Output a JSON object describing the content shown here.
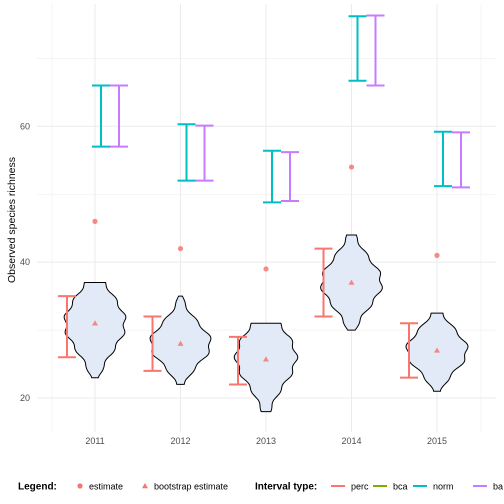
{
  "chart_data": {
    "type": "violin-interval",
    "xlabel": "",
    "ylabel": "Observed species richness",
    "categories": [
      "2011",
      "2012",
      "2013",
      "2014",
      "2015"
    ],
    "y_ticks": [
      20,
      40,
      60
    ],
    "y_tick_labels": [
      "20",
      "40",
      "60"
    ],
    "ylim": [
      15,
      78
    ],
    "grid": true,
    "legend_placement": "bottom",
    "estimate": [
      46,
      42,
      39,
      54,
      41
    ],
    "bootstrap_estimate": [
      31,
      28,
      25.7,
      37,
      27
    ],
    "violins": [
      {
        "year": "2011",
        "min": 23,
        "max": 37,
        "center": 31
      },
      {
        "year": "2012",
        "min": 22,
        "max": 35,
        "center": 28
      },
      {
        "year": "2013",
        "min": 18,
        "max": 31,
        "center": 26
      },
      {
        "year": "2014",
        "min": 30,
        "max": 44,
        "center": 37
      },
      {
        "year": "2015",
        "min": 21,
        "max": 32.5,
        "center": 27
      }
    ],
    "intervals": {
      "perc": [
        [
          26,
          35
        ],
        [
          24,
          32
        ],
        [
          22,
          29
        ],
        [
          32,
          42
        ],
        [
          23,
          31
        ]
      ],
      "norm": [
        [
          57,
          66
        ],
        [
          52,
          60.3
        ],
        [
          48.8,
          56.4
        ],
        [
          66.7,
          76.2
        ],
        [
          51.2,
          59.2
        ]
      ],
      "bca": [
        [
          57,
          66
        ],
        [
          52,
          60.1
        ],
        [
          49,
          56.2
        ],
        [
          66,
          76.3
        ],
        [
          51,
          59.1
        ]
      ]
    },
    "legend": {
      "title": "Legend:",
      "items": [
        {
          "label": "estimate",
          "shape": "circle"
        },
        {
          "label": "bootstrap estimate",
          "shape": "triangle"
        }
      ]
    },
    "interval_legend": {
      "title": "Interval type:",
      "items": [
        {
          "key": "perc",
          "label": "perc"
        },
        {
          "key": "bca",
          "label": "bca"
        },
        {
          "key": "norm",
          "label": "norm"
        },
        {
          "key": "ba",
          "label": "ba"
        }
      ]
    },
    "colors": {
      "perc": "#f8766d",
      "bca": "#7cae00",
      "norm": "#00bfc4",
      "ba": "#c77cff",
      "point": "#f8766d",
      "violin_fill": "#e2eaf8",
      "violin_stroke": "#000000",
      "grid": "#ebebeb"
    }
  }
}
